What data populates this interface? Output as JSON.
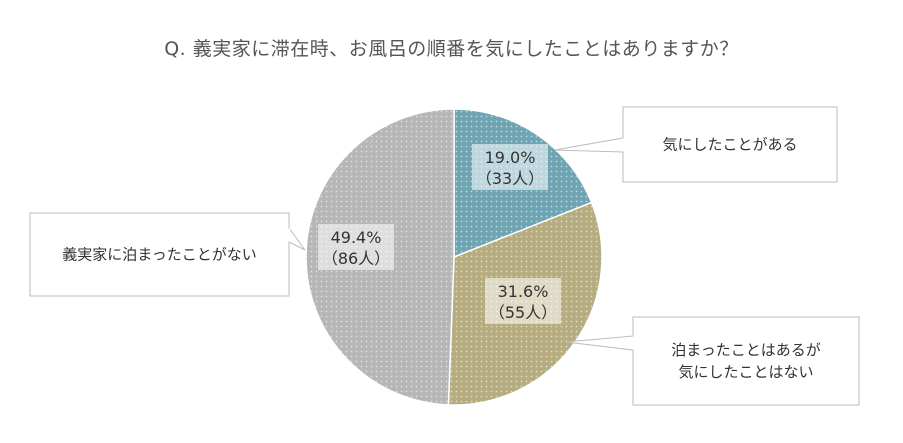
{
  "title": "Q. 義実家に滞在時、お風呂の順番を気にしたことはありますか？",
  "chart_data": {
    "type": "pie",
    "title": "Q. 義実家に滞在時、お風呂の順番を気にしたことはありますか？",
    "slices": [
      {
        "name": "気にしたことがある",
        "name_lines": [
          "気にしたことがある"
        ],
        "value": 19.0,
        "percent_label": "19.0%",
        "count_label": "（33人）",
        "color": "#6fa5b3"
      },
      {
        "name": "泊まったことはあるが気にしたことはない",
        "name_lines": [
          "泊まったことはあるが",
          "気にしたことはない"
        ],
        "value": 31.6,
        "percent_label": "31.6%",
        "count_label": "（55人）",
        "color": "#b5ad7f"
      },
      {
        "name": "義実家に泊まったことがない",
        "name_lines": [
          "義実家に泊まったことがない"
        ],
        "value": 49.4,
        "percent_label": "49.4%",
        "count_label": "（86人）",
        "color": "#b6b6b6"
      }
    ]
  }
}
